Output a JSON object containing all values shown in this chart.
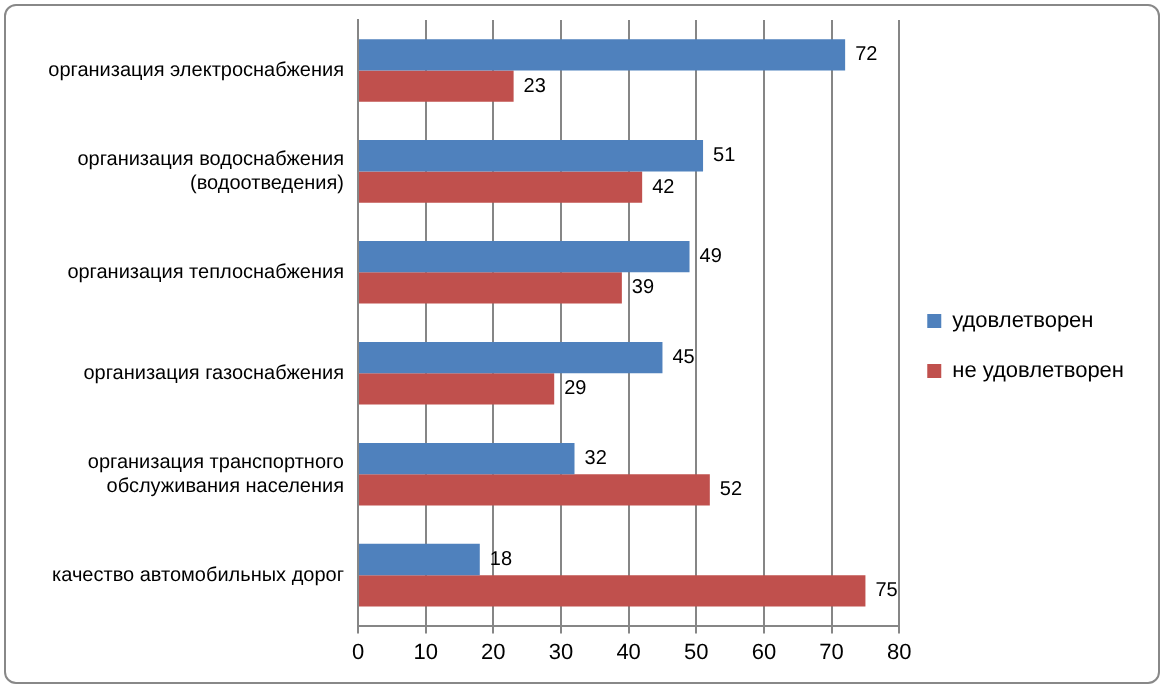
{
  "chart_data": {
    "type": "bar",
    "orientation": "horizontal",
    "categories": [
      "организация электроснабжения",
      "организация водоснабжения (водоотведения)",
      "организация теплоснабжения",
      "организация газоснабжения",
      "организация транспортного обслуживания населения",
      "качество автомобильных дорог"
    ],
    "series": [
      {
        "name": "удовлетворен",
        "color": "#4f81bd",
        "values": [
          72,
          51,
          49,
          45,
          32,
          18
        ]
      },
      {
        "name": "не удовлетворен",
        "color": "#c0504d",
        "values": [
          23,
          42,
          39,
          29,
          52,
          75
        ]
      }
    ],
    "xlim": [
      0,
      80
    ],
    "xticks": [
      0,
      10,
      20,
      30,
      40,
      50,
      60,
      70,
      80
    ],
    "grid": "x",
    "legend": "right",
    "data_labels": true
  }
}
